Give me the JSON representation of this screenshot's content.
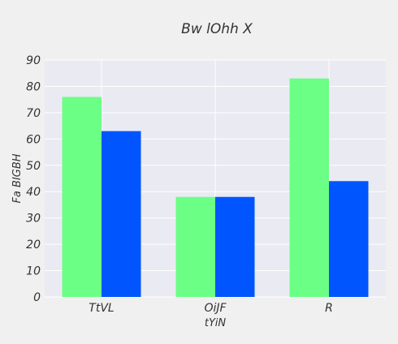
{
  "chart_data": {
    "type": "bar",
    "title": "Bw lOhh X",
    "xlabel": "tYiN",
    "ylabel": "Fa BIGBH",
    "categories": [
      "TtVL",
      "OiJF",
      "R"
    ],
    "series": [
      {
        "values": [
          76,
          38,
          83
        ],
        "color": "#6cff85"
      },
      {
        "values": [
          63,
          38,
          44
        ],
        "color": "#0055ff"
      }
    ],
    "ylim": [
      0,
      90
    ],
    "yticks": [
      0,
      10,
      20,
      30,
      40,
      50,
      60,
      70,
      80,
      90
    ],
    "grid": true,
    "background": "#eaeaf2"
  }
}
